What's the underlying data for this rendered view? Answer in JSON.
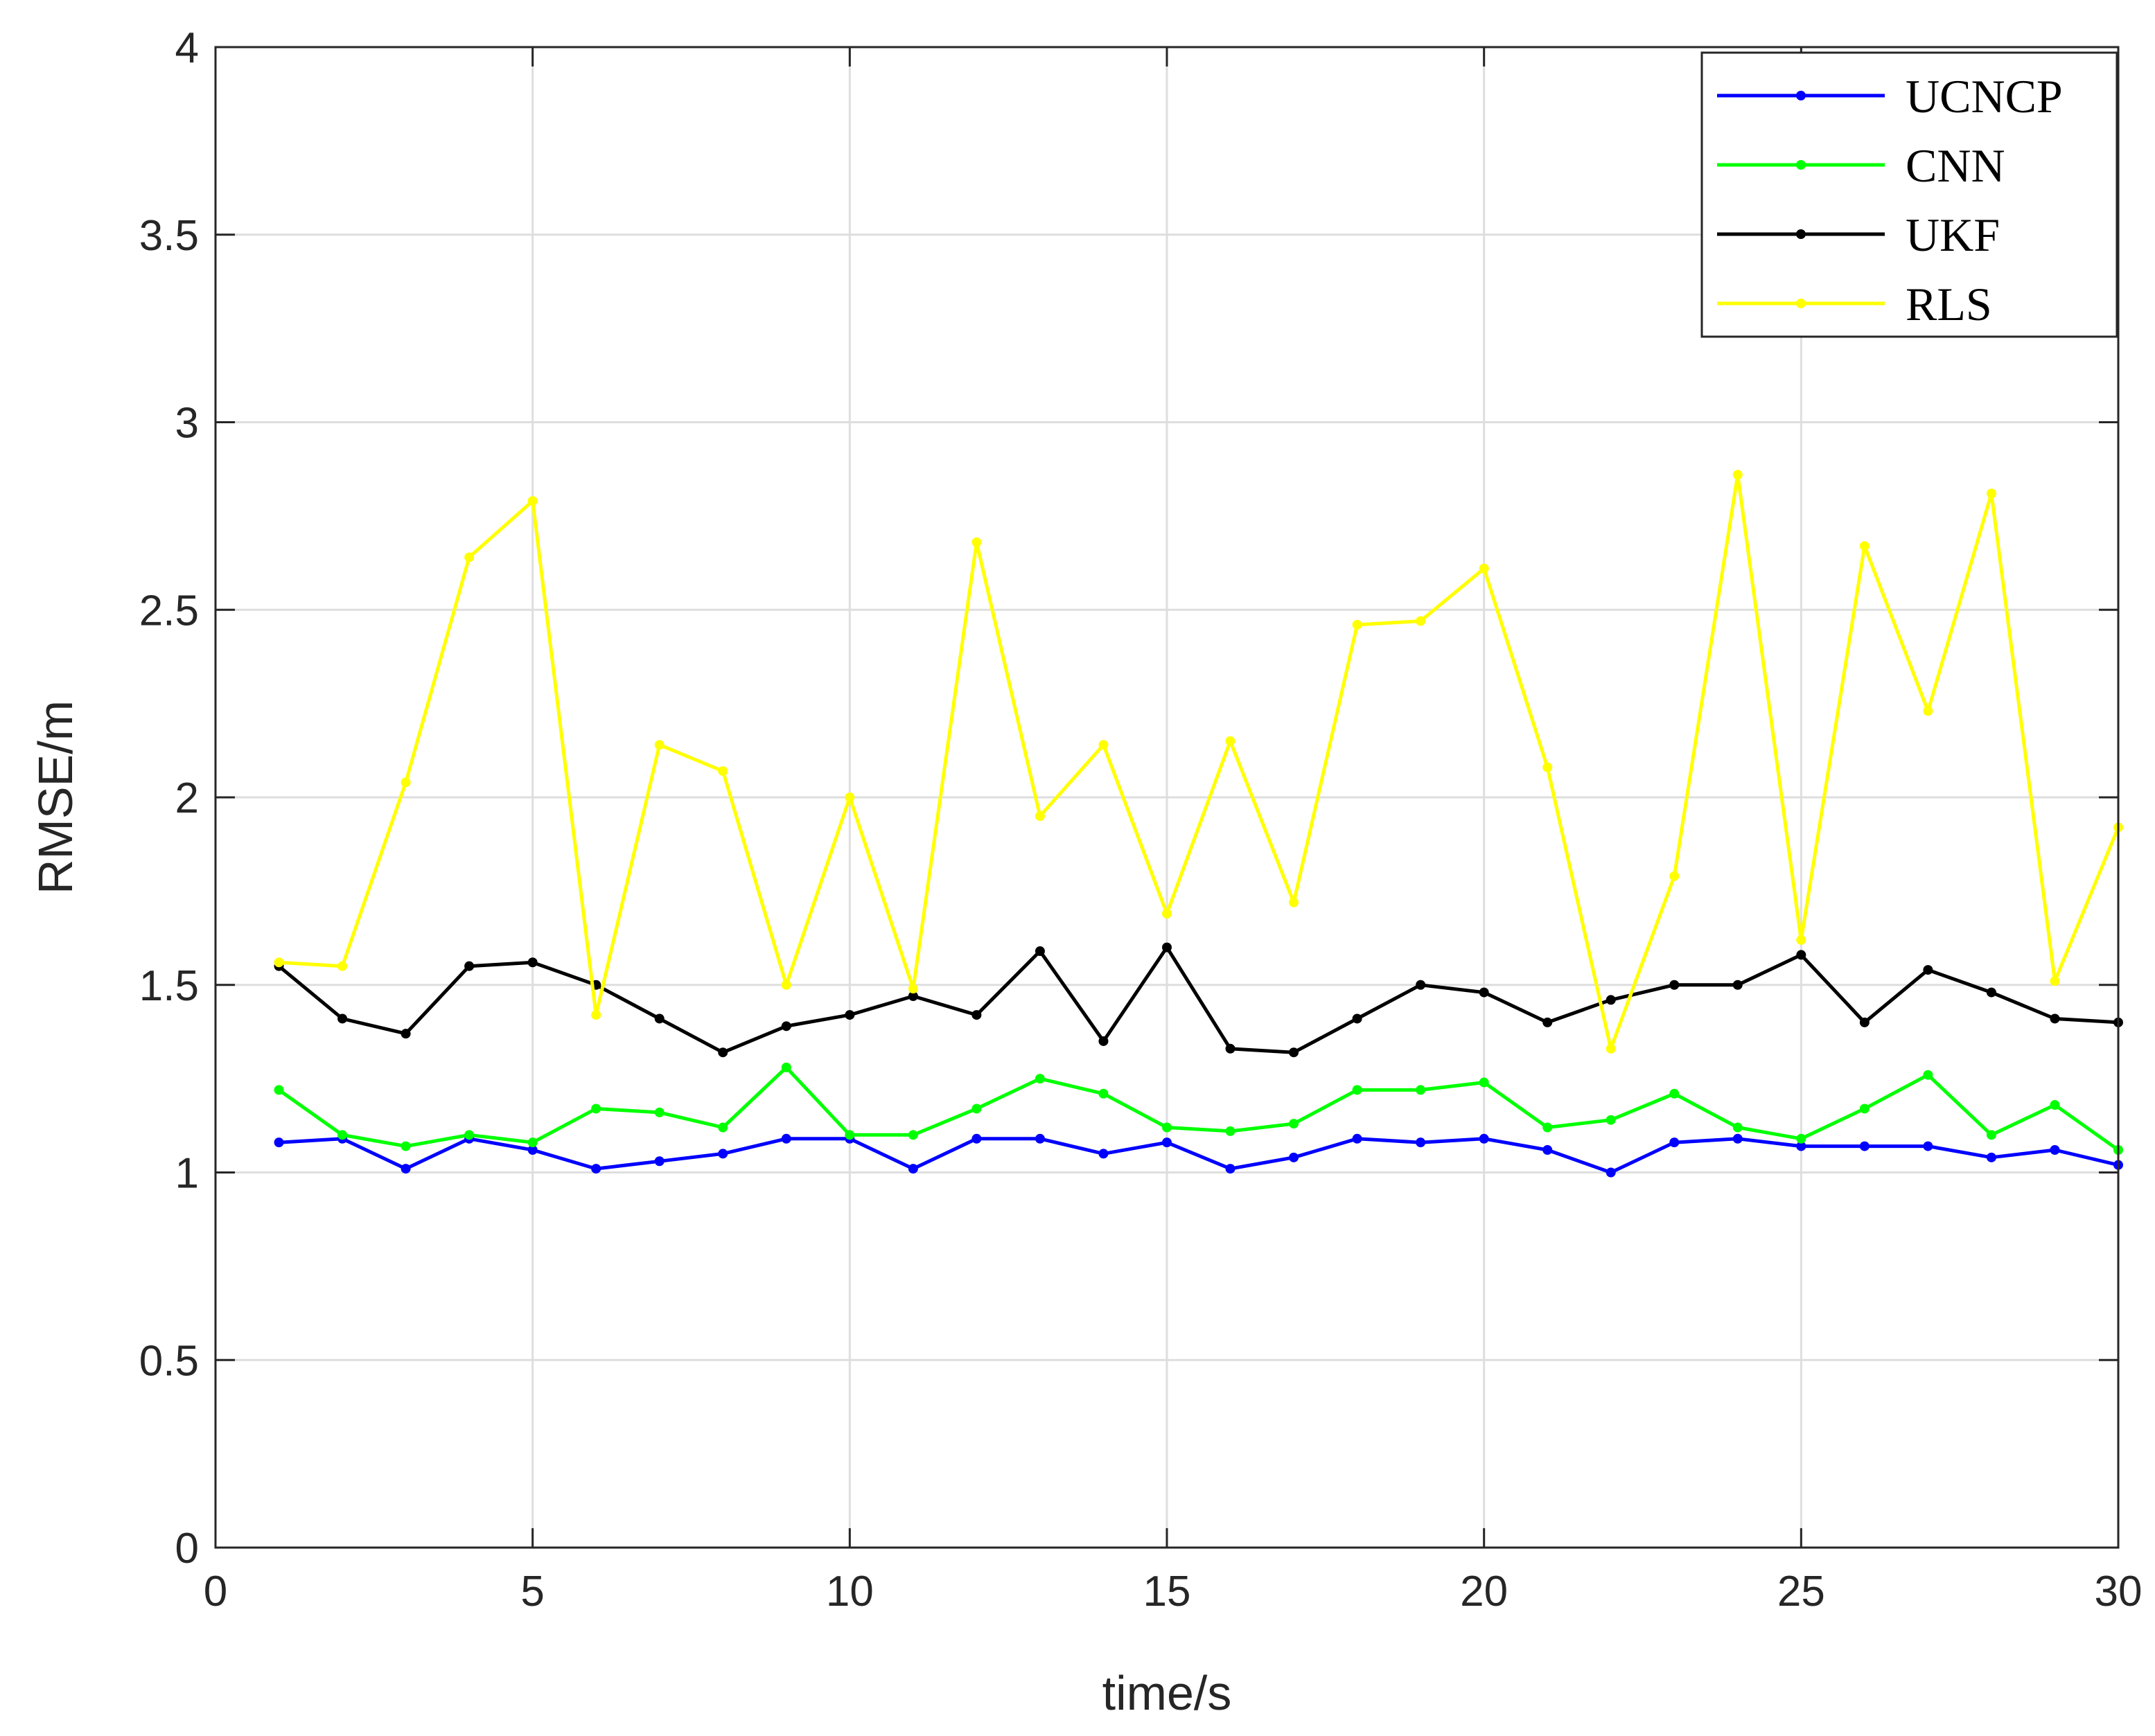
{
  "chart_data": {
    "type": "line",
    "title": "",
    "xlabel": "time/s",
    "ylabel": "RMSE/m",
    "xlim": [
      0,
      30
    ],
    "ylim": [
      0,
      4
    ],
    "xticks": [
      0,
      5,
      10,
      15,
      20,
      25,
      30
    ],
    "yticks": [
      0,
      0.5,
      1,
      1.5,
      2,
      2.5,
      3,
      3.5,
      4
    ],
    "xtick_labels": [
      "0",
      "5",
      "10",
      "15",
      "20",
      "25",
      "30"
    ],
    "ytick_labels": [
      "0",
      "0.5",
      "1",
      "1.5",
      "2",
      "2.5",
      "3",
      "3.5",
      "4"
    ],
    "grid": true,
    "legend_position": "top-right",
    "x": [
      1,
      2,
      3,
      4,
      5,
      6,
      7,
      8,
      9,
      10,
      11,
      12,
      13,
      14,
      15,
      16,
      17,
      18,
      19,
      20,
      21,
      22,
      23,
      24,
      25,
      26,
      27,
      28,
      29,
      30
    ],
    "series": [
      {
        "name": "UCNCP",
        "color": "#0000ff",
        "values": [
          1.08,
          1.09,
          1.01,
          1.09,
          1.06,
          1.01,
          1.03,
          1.05,
          1.09,
          1.09,
          1.01,
          1.09,
          1.09,
          1.05,
          1.08,
          1.01,
          1.04,
          1.09,
          1.08,
          1.09,
          1.06,
          1.0,
          1.08,
          1.09,
          1.07,
          1.07,
          1.07,
          1.04,
          1.06,
          1.02
        ]
      },
      {
        "name": "CNN",
        "color": "#00ff00",
        "values": [
          1.22,
          1.1,
          1.07,
          1.1,
          1.08,
          1.17,
          1.16,
          1.12,
          1.28,
          1.1,
          1.1,
          1.17,
          1.25,
          1.21,
          1.12,
          1.11,
          1.13,
          1.22,
          1.22,
          1.24,
          1.12,
          1.14,
          1.21,
          1.12,
          1.09,
          1.17,
          1.26,
          1.1,
          1.18,
          1.06
        ]
      },
      {
        "name": "UKF",
        "color": "#000000",
        "values": [
          1.55,
          1.41,
          1.37,
          1.55,
          1.56,
          1.5,
          1.41,
          1.32,
          1.39,
          1.42,
          1.47,
          1.42,
          1.59,
          1.35,
          1.6,
          1.33,
          1.32,
          1.41,
          1.5,
          1.48,
          1.4,
          1.46,
          1.5,
          1.5,
          1.58,
          1.4,
          1.54,
          1.48,
          1.41,
          1.4
        ]
      },
      {
        "name": "RLS",
        "color": "#ffff00",
        "values": [
          1.56,
          1.55,
          2.04,
          2.64,
          2.79,
          1.42,
          2.14,
          2.07,
          1.5,
          2.0,
          1.49,
          2.68,
          1.95,
          2.14,
          1.69,
          2.15,
          1.72,
          2.46,
          2.47,
          2.61,
          2.08,
          1.33,
          1.79,
          2.86,
          1.62,
          2.67,
          2.23,
          2.81,
          1.51,
          1.92
        ]
      }
    ]
  }
}
